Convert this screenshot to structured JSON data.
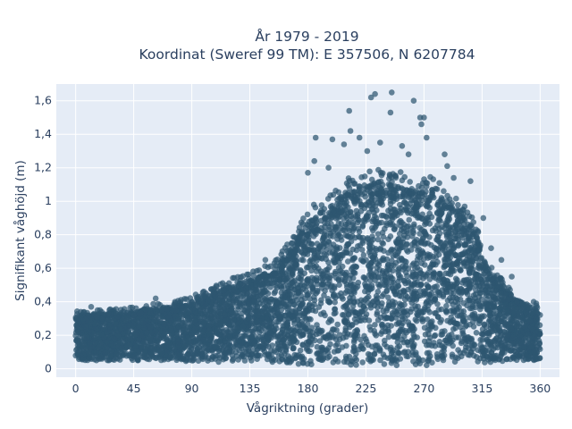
{
  "chart_data": {
    "type": "scatter",
    "title_line1": "År 1979 - 2019",
    "title_line2": "Koordinat (Sweref 99 TM): E 357506, N 6207784",
    "xlabel": "Vågriktning (grader)",
    "ylabel": "Signifikant våghöjd (m)",
    "xlim": [
      -15,
      375
    ],
    "ylim": [
      -0.05,
      1.7
    ],
    "xticks": [
      0,
      45,
      90,
      135,
      180,
      225,
      270,
      315,
      360
    ],
    "xtick_labels": [
      "0",
      "45",
      "90",
      "135",
      "180",
      "225",
      "270",
      "315",
      "360"
    ],
    "yticks": [
      0,
      0.2,
      0.4,
      0.6,
      0.8,
      1.0,
      1.2,
      1.4,
      1.6
    ],
    "ytick_labels": [
      "0",
      "0,2",
      "0,4",
      "0,6",
      "0,8",
      "1",
      "1,2",
      "1,4",
      "1,6"
    ],
    "grid": true,
    "marker_color": "#2e5670",
    "plot_bg": "#e5ecf6",
    "envelope_x": [
      0,
      10,
      20,
      30,
      45,
      60,
      75,
      90,
      105,
      120,
      135,
      150,
      160,
      170,
      180,
      190,
      200,
      210,
      225,
      240,
      255,
      265,
      270,
      280,
      290,
      300,
      310,
      315,
      320,
      330,
      340,
      350,
      360
    ],
    "envelope_upper": [
      0.32,
      0.32,
      0.33,
      0.33,
      0.34,
      0.36,
      0.37,
      0.4,
      0.45,
      0.5,
      0.53,
      0.58,
      0.65,
      0.75,
      0.88,
      0.95,
      1.0,
      1.05,
      1.1,
      1.12,
      1.08,
      1.05,
      1.08,
      1.05,
      0.98,
      0.92,
      0.82,
      0.7,
      0.58,
      0.5,
      0.42,
      0.38,
      0.35
    ],
    "envelope_lower": [
      0.05,
      0.05,
      0.05,
      0.05,
      0.05,
      0.05,
      0.05,
      0.04,
      0.04,
      0.04,
      0.04,
      0.03,
      0.03,
      0.02,
      0.02,
      0.02,
      0.02,
      0.02,
      0.02,
      0.02,
      0.02,
      0.02,
      0.02,
      0.02,
      0.03,
      0.03,
      0.03,
      0.03,
      0.04,
      0.04,
      0.05,
      0.05,
      0.05
    ],
    "outliers": [
      {
        "x": 245,
        "y": 1.65
      },
      {
        "x": 232,
        "y": 1.64
      },
      {
        "x": 229,
        "y": 1.62
      },
      {
        "x": 262,
        "y": 1.6
      },
      {
        "x": 212,
        "y": 1.54
      },
      {
        "x": 244,
        "y": 1.53
      },
      {
        "x": 267,
        "y": 1.5
      },
      {
        "x": 270,
        "y": 1.5
      },
      {
        "x": 268,
        "y": 1.46
      },
      {
        "x": 213,
        "y": 1.42
      },
      {
        "x": 220,
        "y": 1.38
      },
      {
        "x": 236,
        "y": 1.35
      },
      {
        "x": 253,
        "y": 1.33
      },
      {
        "x": 272,
        "y": 1.38
      },
      {
        "x": 186,
        "y": 1.38
      },
      {
        "x": 199,
        "y": 1.37
      },
      {
        "x": 208,
        "y": 1.34
      },
      {
        "x": 226,
        "y": 1.3
      },
      {
        "x": 258,
        "y": 1.28
      },
      {
        "x": 286,
        "y": 1.28
      },
      {
        "x": 288,
        "y": 1.21
      },
      {
        "x": 293,
        "y": 1.14
      },
      {
        "x": 306,
        "y": 1.12
      },
      {
        "x": 185,
        "y": 1.24
      },
      {
        "x": 180,
        "y": 1.17
      },
      {
        "x": 196,
        "y": 1.2
      },
      {
        "x": 166,
        "y": 0.6
      },
      {
        "x": 322,
        "y": 0.72
      },
      {
        "x": 330,
        "y": 0.65
      },
      {
        "x": 338,
        "y": 0.55
      },
      {
        "x": 355,
        "y": 0.4
      },
      {
        "x": 357,
        "y": 0.39
      },
      {
        "x": 62,
        "y": 0.42
      },
      {
        "x": 77,
        "y": 0.4
      },
      {
        "x": 95,
        "y": 0.43
      },
      {
        "x": 108,
        "y": 0.44
      },
      {
        "x": 147,
        "y": 0.65
      },
      {
        "x": 154,
        "y": 0.63
      },
      {
        "x": 12,
        "y": 0.37
      },
      {
        "x": 4,
        "y": 0.34
      },
      {
        "x": 173,
        "y": 0.82
      },
      {
        "x": 316,
        "y": 0.9
      }
    ]
  }
}
